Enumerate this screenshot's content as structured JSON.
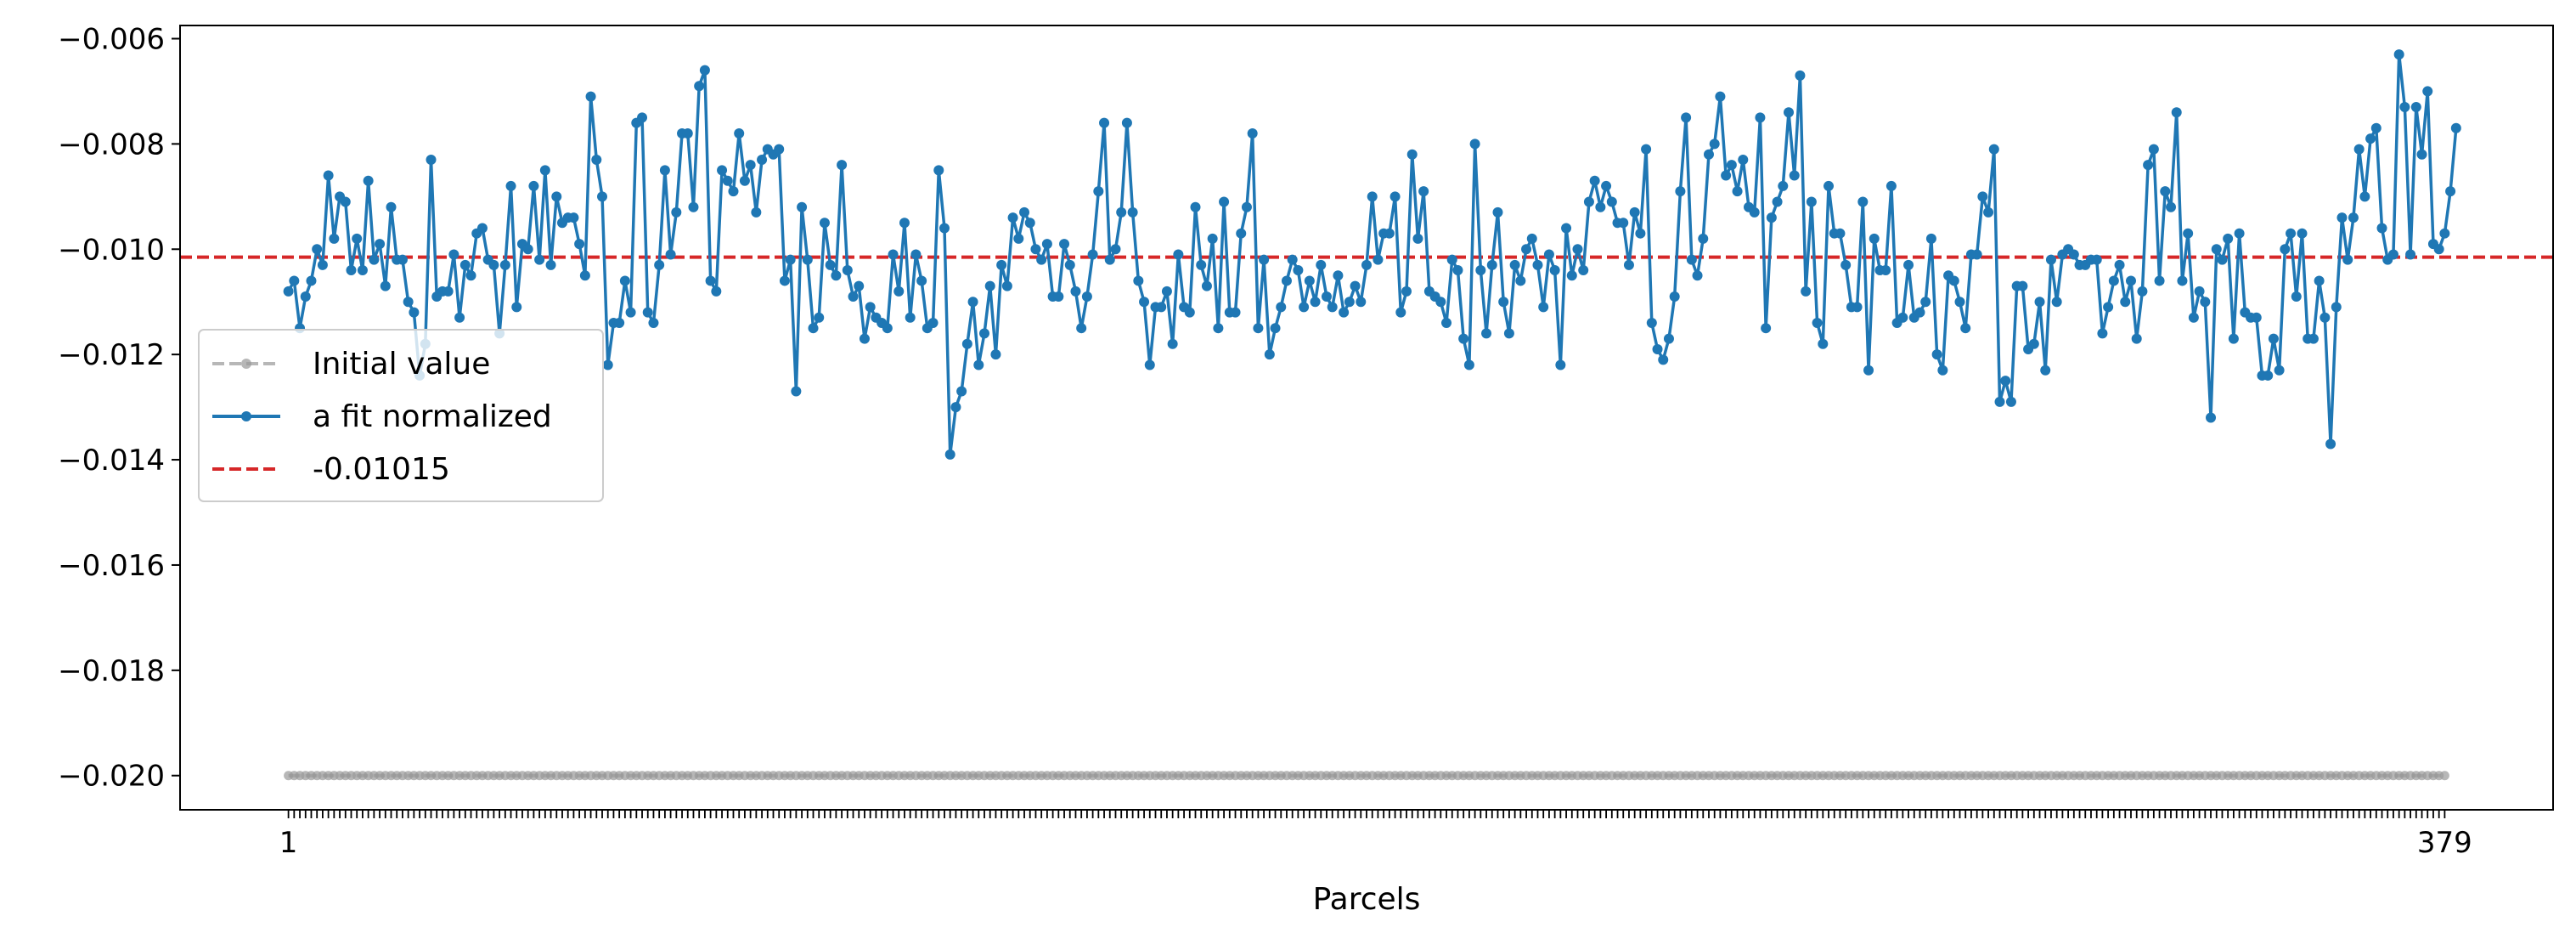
{
  "chart_data": {
    "type": "line",
    "xlabel": "Parcels",
    "ylabel": "",
    "title": "",
    "x_range": [
      1,
      379
    ],
    "xlim": [
      -18,
      398
    ],
    "ylim": [
      -0.02065,
      -0.00575
    ],
    "x_tick_labels": [
      "1",
      "379"
    ],
    "y_ticks": [
      -0.006,
      -0.008,
      -0.01,
      -0.012,
      -0.014,
      -0.016,
      -0.018,
      -0.02
    ],
    "y_tick_labels": [
      "−0.006",
      "−0.008",
      "−0.010",
      "−0.012",
      "−0.014",
      "−0.016",
      "−0.018",
      "−0.020"
    ],
    "grid": false,
    "legend_position": "center-left",
    "legend": [
      "Initial value",
      "a fit normalized",
      "-0.01015"
    ],
    "series": [
      {
        "name": "Initial value",
        "style": "dashed-dotted",
        "color": "#999999",
        "constant_value": -0.02,
        "count": 379
      },
      {
        "name": "a fit normalized",
        "style": "solid-dotted",
        "color": "#1f77b4",
        "values": [
          -0.0108,
          -0.0106,
          -0.0115,
          -0.0109,
          -0.0106,
          -0.01,
          -0.0103,
          -0.0086,
          -0.0098,
          -0.009,
          -0.0091,
          -0.0104,
          -0.0098,
          -0.0104,
          -0.0087,
          -0.0102,
          -0.0099,
          -0.0107,
          -0.0092,
          -0.0102,
          -0.0102,
          -0.011,
          -0.0112,
          -0.0124,
          -0.0118,
          -0.0083,
          -0.0109,
          -0.0108,
          -0.0108,
          -0.0101,
          -0.0113,
          -0.0103,
          -0.0105,
          -0.0097,
          -0.0096,
          -0.0102,
          -0.0103,
          -0.0116,
          -0.0103,
          -0.0088,
          -0.0111,
          -0.0099,
          -0.01,
          -0.0088,
          -0.0102,
          -0.0085,
          -0.0103,
          -0.009,
          -0.0095,
          -0.0094,
          -0.0094,
          -0.0099,
          -0.0105,
          -0.0071,
          -0.0083,
          -0.009,
          -0.0122,
          -0.0114,
          -0.0114,
          -0.0106,
          -0.0112,
          -0.0076,
          -0.0075,
          -0.0112,
          -0.0114,
          -0.0103,
          -0.0085,
          -0.0101,
          -0.0093,
          -0.0078,
          -0.0078,
          -0.0092,
          -0.0069,
          -0.0066,
          -0.0106,
          -0.0108,
          -0.0085,
          -0.0087,
          -0.0089,
          -0.0078,
          -0.0087,
          -0.0084,
          -0.0093,
          -0.0083,
          -0.0081,
          -0.0082,
          -0.0081,
          -0.0106,
          -0.0102,
          -0.0127,
          -0.0092,
          -0.0102,
          -0.0115,
          -0.0113,
          -0.0095,
          -0.0103,
          -0.0105,
          -0.0084,
          -0.0104,
          -0.0109,
          -0.0107,
          -0.0117,
          -0.0111,
          -0.0113,
          -0.0114,
          -0.0115,
          -0.0101,
          -0.0108,
          -0.0095,
          -0.0113,
          -0.0101,
          -0.0106,
          -0.0115,
          -0.0114,
          -0.0085,
          -0.0096,
          -0.0139,
          -0.013,
          -0.0127,
          -0.0118,
          -0.011,
          -0.0122,
          -0.0116,
          -0.0107,
          -0.012,
          -0.0103,
          -0.0107,
          -0.0094,
          -0.0098,
          -0.0093,
          -0.0095,
          -0.01,
          -0.0102,
          -0.0099,
          -0.0109,
          -0.0109,
          -0.0099,
          -0.0103,
          -0.0108,
          -0.0115,
          -0.0109,
          -0.0101,
          -0.0089,
          -0.0076,
          -0.0102,
          -0.01,
          -0.0093,
          -0.0076,
          -0.0093,
          -0.0106,
          -0.011,
          -0.0122,
          -0.0111,
          -0.0111,
          -0.0108,
          -0.0118,
          -0.0101,
          -0.0111,
          -0.0112,
          -0.0092,
          -0.0103,
          -0.0107,
          -0.0098,
          -0.0115,
          -0.0091,
          -0.0112,
          -0.0112,
          -0.0097,
          -0.0092,
          -0.0078,
          -0.0115,
          -0.0102,
          -0.012,
          -0.0115,
          -0.0111,
          -0.0106,
          -0.0102,
          -0.0104,
          -0.0111,
          -0.0106,
          -0.011,
          -0.0103,
          -0.0109,
          -0.0111,
          -0.0105,
          -0.0112,
          -0.011,
          -0.0107,
          -0.011,
          -0.0103,
          -0.009,
          -0.0102,
          -0.0097,
          -0.0097,
          -0.009,
          -0.0112,
          -0.0108,
          -0.0082,
          -0.0098,
          -0.0089,
          -0.0108,
          -0.0109,
          -0.011,
          -0.0114,
          -0.0102,
          -0.0104,
          -0.0117,
          -0.0122,
          -0.008,
          -0.0104,
          -0.0116,
          -0.0103,
          -0.0093,
          -0.011,
          -0.0116,
          -0.0103,
          -0.0106,
          -0.01,
          -0.0098,
          -0.0103,
          -0.0111,
          -0.0101,
          -0.0104,
          -0.0122,
          -0.0096,
          -0.0105,
          -0.01,
          -0.0104,
          -0.0091,
          -0.0087,
          -0.0092,
          -0.0088,
          -0.0091,
          -0.0095,
          -0.0095,
          -0.0103,
          -0.0093,
          -0.0097,
          -0.0081,
          -0.0114,
          -0.0119,
          -0.0121,
          -0.0117,
          -0.0109,
          -0.0089,
          -0.0075,
          -0.0102,
          -0.0105,
          -0.0098,
          -0.0082,
          -0.008,
          -0.0071,
          -0.0086,
          -0.0084,
          -0.0089,
          -0.0083,
          -0.0092,
          -0.0093,
          -0.0075,
          -0.0115,
          -0.0094,
          -0.0091,
          -0.0088,
          -0.0074,
          -0.0086,
          -0.0067,
          -0.0108,
          -0.0091,
          -0.0114,
          -0.0118,
          -0.0088,
          -0.0097,
          -0.0097,
          -0.0103,
          -0.0111,
          -0.0111,
          -0.0091,
          -0.0123,
          -0.0098,
          -0.0104,
          -0.0104,
          -0.0088,
          -0.0114,
          -0.0113,
          -0.0103,
          -0.0113,
          -0.0112,
          -0.011,
          -0.0098,
          -0.012,
          -0.0123,
          -0.0105,
          -0.0106,
          -0.011,
          -0.0115,
          -0.0101,
          -0.0101,
          -0.009,
          -0.0093,
          -0.0081,
          -0.0129,
          -0.0125,
          -0.0129,
          -0.0107,
          -0.0107,
          -0.0119,
          -0.0118,
          -0.011,
          -0.0123,
          -0.0102,
          -0.011,
          -0.0101,
          -0.01,
          -0.0101,
          -0.0103,
          -0.0103,
          -0.0102,
          -0.0102,
          -0.0116,
          -0.0111,
          -0.0106,
          -0.0103,
          -0.011,
          -0.0106,
          -0.0117,
          -0.0108,
          -0.0084,
          -0.0081,
          -0.0106,
          -0.0089,
          -0.0092,
          -0.0074,
          -0.0106,
          -0.0097,
          -0.0113,
          -0.0108,
          -0.011,
          -0.0132,
          -0.01,
          -0.0102,
          -0.0098,
          -0.0117,
          -0.0097,
          -0.0112,
          -0.0113,
          -0.0113,
          -0.0124,
          -0.0124,
          -0.0117,
          -0.0123,
          -0.01,
          -0.0097,
          -0.0109,
          -0.0097,
          -0.0117,
          -0.0117,
          -0.0106,
          -0.0113,
          -0.0137,
          -0.0111,
          -0.0094,
          -0.0102,
          -0.0094,
          -0.0081,
          -0.009,
          -0.0079,
          -0.0077,
          -0.0096,
          -0.0102,
          -0.0101,
          -0.0063,
          -0.0073,
          -0.0101,
          -0.0073,
          -0.0082,
          -0.007,
          -0.0099,
          -0.01,
          -0.0097,
          -0.0089,
          -0.0077
        ]
      },
      {
        "name": "-0.01015",
        "style": "dashed",
        "color": "#d62728",
        "value": -0.01015
      }
    ]
  }
}
